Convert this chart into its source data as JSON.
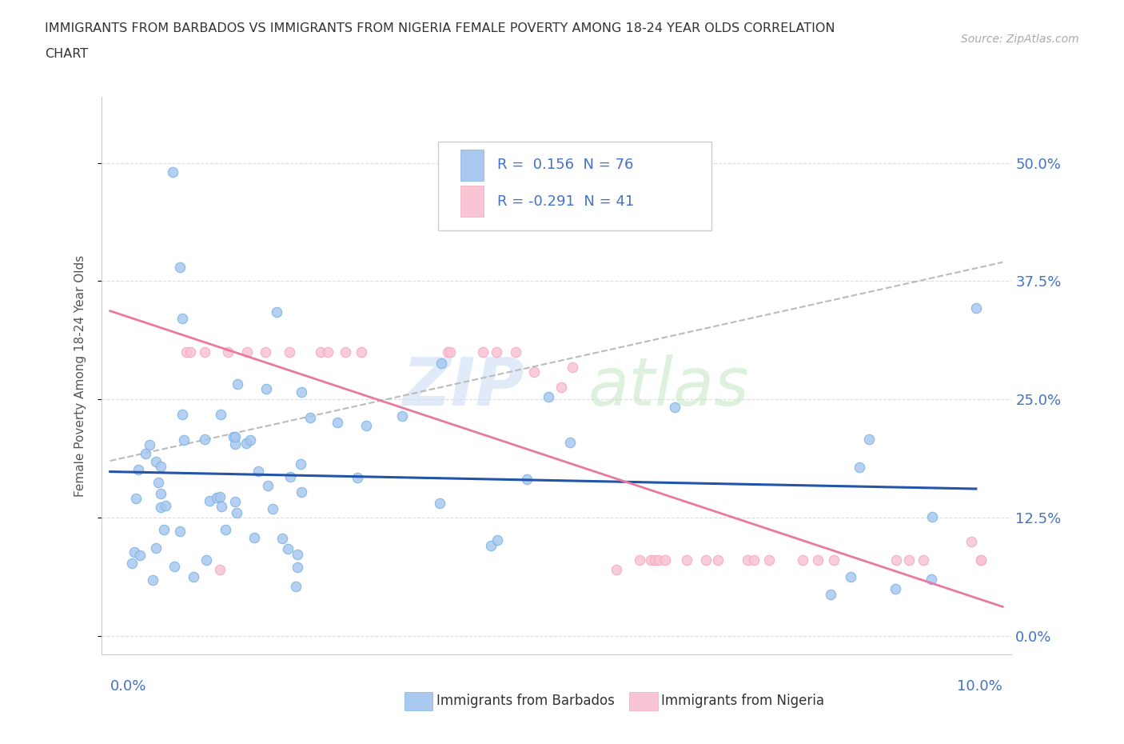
{
  "title_line1": "IMMIGRANTS FROM BARBADOS VS IMMIGRANTS FROM NIGERIA FEMALE POVERTY AMONG 18-24 YEAR OLDS CORRELATION",
  "title_line2": "CHART",
  "source": "Source: ZipAtlas.com",
  "ylabel": "Female Poverty Among 18-24 Year Olds",
  "xlim": [
    0.0,
    0.1
  ],
  "ylim": [
    0.0,
    0.55
  ],
  "ytick_labels": [
    "0.0%",
    "12.5%",
    "25.0%",
    "37.5%",
    "50.0%"
  ],
  "ytick_values": [
    0.0,
    0.125,
    0.25,
    0.375,
    0.5
  ],
  "barbados_color": "#a8c8f0",
  "barbados_edge_color": "#7ab3e0",
  "nigeria_color": "#f9c4d4",
  "nigeria_edge_color": "#f4a7b9",
  "barbados_line_color": "#2255aa",
  "nigeria_line_color": "#e87aa0",
  "dashed_line_color": "#bbbbbb",
  "R_barbados": 0.156,
  "N_barbados": 76,
  "R_nigeria": -0.291,
  "N_nigeria": 41,
  "legend_color": "#4472c4",
  "legend_label_color": "#333333",
  "background_color": "#ffffff",
  "watermark_zip_color": "#d0dff0",
  "watermark_atlas_color": "#d0e8d0",
  "title_color": "#333333",
  "axis_label_color": "#555555",
  "grid_color": "#dddddd",
  "source_color": "#aaaaaa"
}
